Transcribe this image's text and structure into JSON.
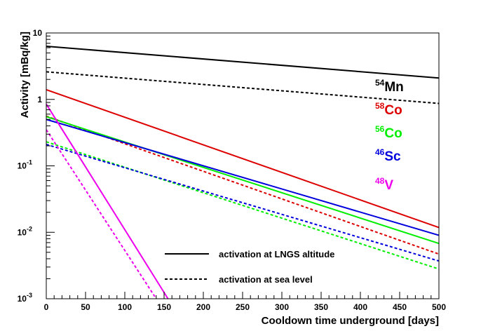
{
  "chart_data": {
    "type": "line",
    "xlabel": "Cooldown time underground [days]",
    "ylabel": "Activity [mBq/kg]",
    "xlim": [
      0,
      500
    ],
    "ylim": [
      0.001,
      10
    ],
    "yscale": "log",
    "x_ticks": [
      "0",
      "50",
      "100",
      "150",
      "200",
      "250",
      "300",
      "350",
      "400",
      "450",
      "500"
    ],
    "y_ticks": [
      {
        "label": "10",
        "sup": ""
      },
      {
        "label": "1",
        "sup": ""
      },
      {
        "label": "10",
        "sup": "-1"
      },
      {
        "label": "10",
        "sup": "-2"
      },
      {
        "label": "10",
        "sup": "-3"
      }
    ],
    "grid": false,
    "colors": {
      "Mn": "#000000",
      "Co58": "#dd0000",
      "Co56": "#00ee00",
      "Sc": "#0000dd",
      "V": "#ee00ee"
    },
    "series": [
      {
        "name": "54Mn",
        "mass": "54",
        "element": "Mn",
        "color": "#000000",
        "style": "solid",
        "x": [
          0,
          500
        ],
        "y": [
          6.3,
          2.1
        ]
      },
      {
        "name": "54Mn",
        "mass": "54",
        "element": "Mn",
        "color": "#000000",
        "style": "dashed",
        "x": [
          0,
          500
        ],
        "y": [
          2.6,
          0.87
        ]
      },
      {
        "name": "58Co",
        "mass": "58",
        "element": "Co",
        "color": "#dd0000",
        "style": "solid",
        "x": [
          0,
          500
        ],
        "y": [
          1.4,
          0.0118
        ]
      },
      {
        "name": "58Co",
        "mass": "58",
        "element": "Co",
        "color": "#dd0000",
        "style": "dashed",
        "x": [
          0,
          500
        ],
        "y": [
          0.56,
          0.0047
        ]
      },
      {
        "name": "56Co",
        "mass": "56",
        "element": "Co",
        "color": "#00ee00",
        "style": "solid",
        "x": [
          0,
          500
        ],
        "y": [
          0.55,
          0.0068
        ]
      },
      {
        "name": "56Co",
        "mass": "56",
        "element": "Co",
        "color": "#00ee00",
        "style": "dashed",
        "x": [
          0,
          500
        ],
        "y": [
          0.23,
          0.0028
        ]
      },
      {
        "name": "46Sc",
        "mass": "46",
        "element": "Sc",
        "color": "#0000dd",
        "style": "solid",
        "x": [
          0,
          500
        ],
        "y": [
          0.5,
          0.009
        ]
      },
      {
        "name": "46Sc",
        "mass": "46",
        "element": "Sc",
        "color": "#0000dd",
        "style": "dashed",
        "x": [
          0,
          500
        ],
        "y": [
          0.21,
          0.0037
        ]
      },
      {
        "name": "48V",
        "mass": "48",
        "element": "V",
        "color": "#ee00ee",
        "style": "solid",
        "x": [
          0,
          155
        ],
        "y": [
          0.85,
          0.001
        ]
      },
      {
        "name": "48V",
        "mass": "48",
        "element": "V",
        "color": "#ee00ee",
        "style": "dashed",
        "x": [
          0,
          140
        ],
        "y": [
          0.35,
          0.001
        ]
      }
    ],
    "legend": {
      "placement": "bottom-center",
      "entries": [
        {
          "label": "activation at LNGS altitude",
          "style": "solid"
        },
        {
          "label": "activation at sea level",
          "style": "dashed"
        }
      ]
    },
    "annotations": [
      {
        "mass": "54",
        "element": "Mn",
        "color": "#000000"
      },
      {
        "mass": "58",
        "element": "Co",
        "color": "#dd0000"
      },
      {
        "mass": "56",
        "element": "Co",
        "color": "#00ee00"
      },
      {
        "mass": "46",
        "element": "Sc",
        "color": "#0000dd"
      },
      {
        "mass": "48",
        "element": "V",
        "color": "#ee00ee"
      }
    ]
  }
}
